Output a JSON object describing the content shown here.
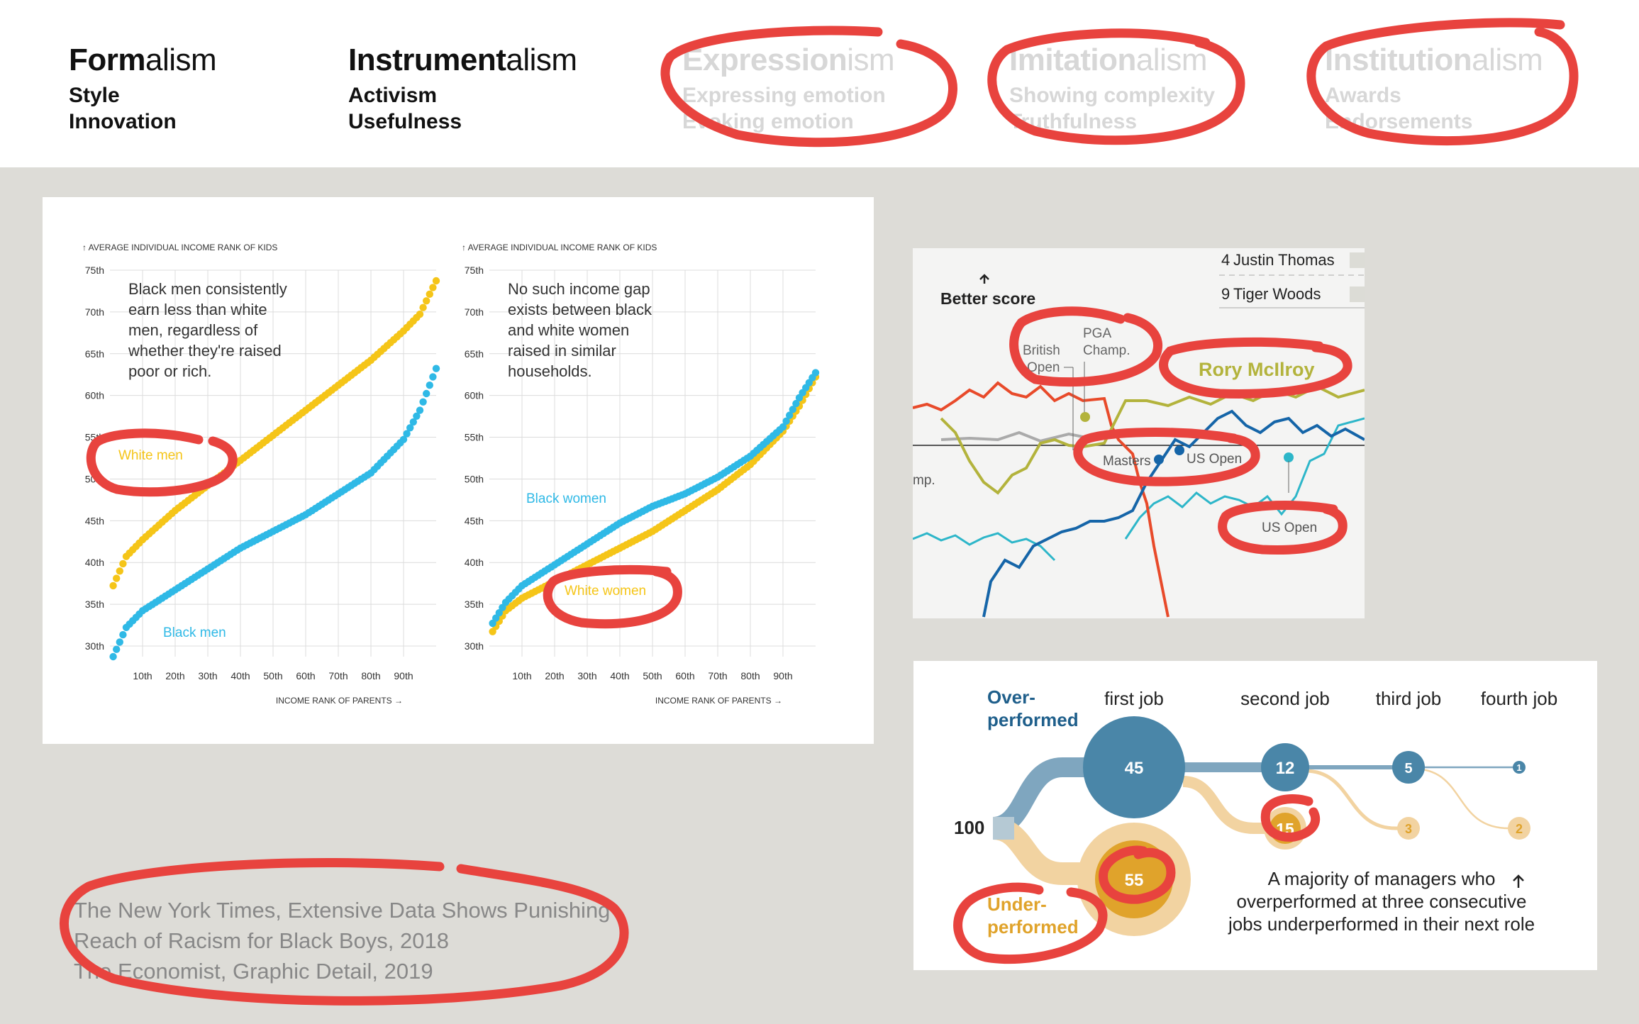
{
  "header": {
    "columns": [
      {
        "bold": "Form",
        "rest": "alism",
        "items": [
          "Style",
          "Innovation"
        ]
      },
      {
        "bold": "Instrument",
        "rest": "alism",
        "items": [
          "Activism",
          "Usefulness"
        ]
      },
      {
        "bold": "Expression",
        "rest": "ism",
        "items": [
          "Expressing emotion",
          "Evoking emotion"
        ]
      },
      {
        "bold": "Imitation",
        "rest": "alism",
        "items": [
          "Showing complexity",
          "Truthfulness"
        ]
      },
      {
        "bold": "Institution",
        "rest": "alism",
        "items": [
          "Awards",
          "Endorsements"
        ]
      }
    ]
  },
  "citation": {
    "lines": [
      "The New York Times, Extensive Data Shows Punishing",
      "Reach of Racism for Black Boys, 2018",
      "The Economist, Graphic Detail, 2019"
    ]
  },
  "colors": {
    "yellow": "#f5c518",
    "blue": "#2fb9e6",
    "annotation": "#e8433e"
  },
  "chart_data": [
    {
      "type": "scatter",
      "ylabel": "↑ AVERAGE INDIVIDUAL INCOME RANK OF KIDS",
      "xlabel": "INCOME RANK OF PARENTS →",
      "note": "Black men consistently earn less than white men, regardless of whether they're raised poor or rich.",
      "xticks": [
        "10th",
        "20th",
        "30th",
        "40th",
        "50th",
        "60th",
        "70th",
        "80th",
        "90th"
      ],
      "yticks": [
        "30th",
        "35th",
        "40th",
        "45th",
        "50th",
        "55th",
        "60th",
        "65th",
        "70th",
        "75th"
      ],
      "xlim": [
        0,
        100
      ],
      "ylim": [
        30,
        75
      ],
      "grid": true,
      "series": [
        {
          "name": "White men",
          "color": "#f5c518",
          "x": [
            1,
            5,
            10,
            20,
            30,
            40,
            50,
            60,
            70,
            80,
            90,
            95,
            100
          ],
          "y": [
            38.5,
            42,
            44,
            47.5,
            50.5,
            53.5,
            56.5,
            59.5,
            62.5,
            65.5,
            69,
            71,
            75
          ]
        },
        {
          "name": "Black men",
          "color": "#2fb9e6",
          "x": [
            1,
            5,
            10,
            20,
            30,
            40,
            50,
            60,
            70,
            80,
            90,
            95,
            100
          ],
          "y": [
            30,
            33.5,
            35.5,
            38,
            40.5,
            43,
            45,
            47,
            49.5,
            52,
            56,
            59.5,
            64.5
          ]
        }
      ]
    },
    {
      "type": "scatter",
      "ylabel": "↑ AVERAGE INDIVIDUAL INCOME RANK OF KIDS",
      "xlabel": "INCOME RANK OF PARENTS →",
      "note": "No such income gap exists between black and white women raised in similar households.",
      "xticks": [
        "10th",
        "20th",
        "30th",
        "40th",
        "50th",
        "60th",
        "70th",
        "80th",
        "90th"
      ],
      "yticks": [
        "30th",
        "35th",
        "40th",
        "45th",
        "50th",
        "55th",
        "60th",
        "65th",
        "70th",
        "75th"
      ],
      "xlim": [
        0,
        100
      ],
      "ylim": [
        30,
        75
      ],
      "grid": true,
      "series": [
        {
          "name": "White women",
          "color": "#f5c518",
          "x": [
            1,
            5,
            10,
            20,
            30,
            40,
            50,
            60,
            70,
            80,
            90,
            95,
            100
          ],
          "y": [
            33,
            35.5,
            37,
            39,
            41,
            43,
            45,
            47.5,
            50,
            53,
            57,
            60,
            63.5
          ]
        },
        {
          "name": "Black women",
          "color": "#2fb9e6",
          "x": [
            1,
            5,
            10,
            20,
            30,
            40,
            50,
            60,
            70,
            80,
            90,
            95,
            100
          ],
          "y": [
            34,
            36.5,
            38.5,
            41,
            43.5,
            46,
            48,
            49.5,
            51.5,
            54,
            57.5,
            61,
            64
          ]
        }
      ]
    },
    {
      "type": "line",
      "annotations": {
        "better_score": "Better score",
        "british_open": "British Open",
        "pga_champ": "PGA Champ.",
        "masters": "Masters",
        "us_open_1": "US Open",
        "us_open_2": "US Open",
        "champ_fragment": "mp."
      },
      "legend": [
        {
          "rank": "4",
          "name": "Justin Thomas"
        },
        {
          "rank": "9",
          "name": "Tiger Woods"
        }
      ],
      "series": [
        {
          "name": "Rory McIlroy",
          "color": "#b3b33c"
        }
      ]
    },
    {
      "type": "table",
      "labels": {
        "overperformed": "Over-performed",
        "underperformed": "Under-performed",
        "start": "100",
        "note": "A majority of managers who overperformed at three consecutive jobs underperformed in their next role"
      },
      "categories": [
        "first job",
        "second job",
        "third job",
        "fourth job"
      ],
      "series": [
        {
          "name": "Over-performed",
          "values": [
            45,
            12,
            5,
            1
          ]
        },
        {
          "name": "Under-performed",
          "values": [
            55,
            15,
            3,
            2
          ]
        }
      ]
    }
  ]
}
